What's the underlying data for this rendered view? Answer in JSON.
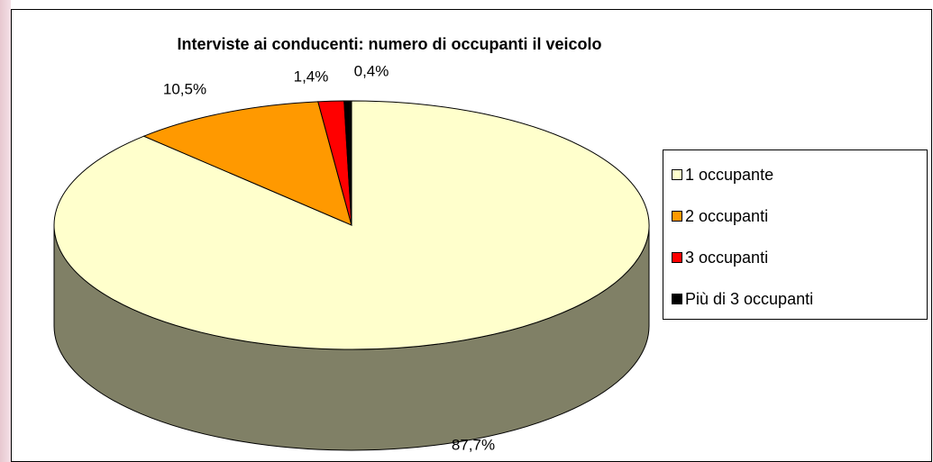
{
  "chart_data": {
    "type": "pie",
    "title": "Interviste ai conducenti: numero di occupanti il veicolo",
    "categories": [
      "1 occupante",
      "2 occupanti",
      "3 occupanti",
      "Più di 3 occupanti"
    ],
    "values": [
      87.7,
      10.5,
      1.4,
      0.4
    ],
    "value_labels": [
      "87,7%",
      "10,5%",
      "1,4%",
      "0,4%"
    ],
    "colors": [
      "#FFFFCC",
      "#FF9900",
      "#FF0000",
      "#000000"
    ],
    "legend": "right"
  }
}
